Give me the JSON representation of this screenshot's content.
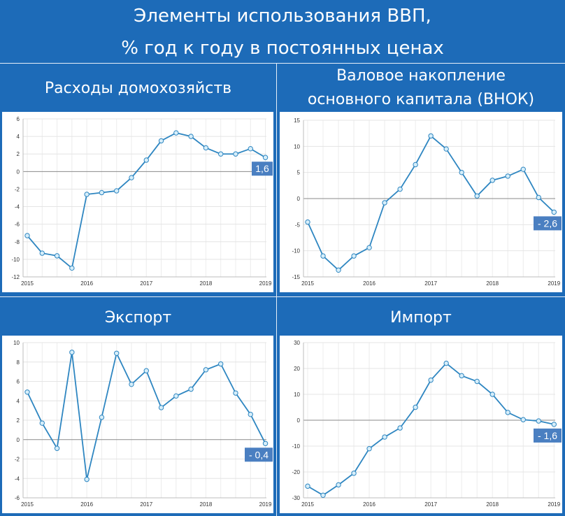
{
  "header": {
    "title_line1": "Элементы использования ВВП,",
    "title_line2": "% год к году в постоянных ценах"
  },
  "colors": {
    "background": "#1d6bb8",
    "line": "#2e86c1",
    "marker_fill": "#d6eefa",
    "label_bg": "#4a7fc1"
  },
  "chart_data": [
    {
      "type": "line",
      "title_lines": [
        "Расходы домохозяйств"
      ],
      "x_ticks": [
        "2015",
        "2016",
        "2017",
        "2018",
        "2019"
      ],
      "y_ticks": [
        "6",
        "4",
        "2",
        "0",
        "-2",
        "-4",
        "-6",
        "-8",
        "-10",
        "-12"
      ],
      "ylim": [
        -12,
        6
      ],
      "x": [
        0,
        1,
        2,
        3,
        4,
        5,
        6,
        7,
        8,
        9,
        10,
        11,
        12,
        13,
        14,
        15,
        16
      ],
      "values": [
        -7.3,
        -9.3,
        -9.6,
        -11.0,
        -2.6,
        -2.4,
        -2.2,
        -0.7,
        1.3,
        3.5,
        4.4,
        4.0,
        2.7,
        2.0,
        2.0,
        2.6,
        1.6
      ],
      "last_label": "1,6",
      "grid": true
    },
    {
      "type": "line",
      "title_lines": [
        "Валовое накопление",
        "основного капитала (ВНОК)"
      ],
      "x_ticks": [
        "2015",
        "2016",
        "2017",
        "2018",
        "2019"
      ],
      "y_ticks": [
        "15",
        "10",
        "5",
        "0",
        "-5",
        "-10",
        "-15"
      ],
      "ylim": [
        -15,
        15
      ],
      "x": [
        0,
        1,
        2,
        3,
        4,
        5,
        6,
        7,
        8,
        9,
        10,
        11,
        12,
        13,
        14,
        15,
        16
      ],
      "values": [
        -4.5,
        -11.0,
        -13.7,
        -11.0,
        -9.4,
        -0.8,
        1.8,
        6.5,
        12.0,
        9.5,
        5.0,
        0.5,
        3.5,
        4.3,
        5.6,
        0.2,
        -2.6
      ],
      "last_label": "- 2,6",
      "grid": true
    },
    {
      "type": "line",
      "title_lines": [
        "Экспорт"
      ],
      "x_ticks": [
        "2015",
        "2016",
        "2017",
        "2018",
        "2019"
      ],
      "y_ticks": [
        "10",
        "8",
        "6",
        "4",
        "2",
        "0",
        "-2",
        "-4",
        "-6"
      ],
      "ylim": [
        -6,
        10
      ],
      "x": [
        0,
        1,
        2,
        3,
        4,
        5,
        6,
        7,
        8,
        9,
        10,
        11,
        12,
        13,
        14,
        15,
        16
      ],
      "values": [
        4.9,
        1.7,
        -0.9,
        9.0,
        -4.1,
        2.3,
        8.9,
        5.7,
        7.1,
        3.3,
        4.5,
        5.2,
        7.2,
        7.8,
        4.8,
        2.6,
        -0.4
      ],
      "last_label": "- 0,4",
      "grid": true
    },
    {
      "type": "line",
      "title_lines": [
        "Импорт"
      ],
      "x_ticks": [
        "2015",
        "2016",
        "2017",
        "2018",
        "2019"
      ],
      "y_ticks": [
        "30",
        "20",
        "10",
        "0",
        "-10",
        "-20",
        "-30"
      ],
      "ylim": [
        -30,
        30
      ],
      "x": [
        0,
        1,
        2,
        3,
        4,
        5,
        6,
        7,
        8,
        9,
        10,
        11,
        12,
        13,
        14,
        15,
        16
      ],
      "values": [
        -25.5,
        -29.0,
        -25.0,
        -20.5,
        -11.0,
        -6.5,
        -3.0,
        5.0,
        15.5,
        22.0,
        17.2,
        15.0,
        10.0,
        3.0,
        0.2,
        -0.3,
        -1.6
      ],
      "last_label": "- 1,6",
      "grid": true
    }
  ]
}
